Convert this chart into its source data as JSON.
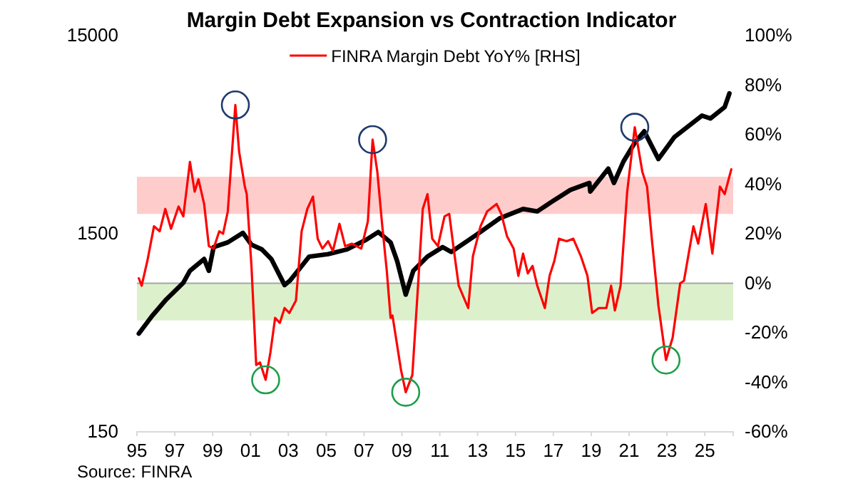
{
  "chart_data": {
    "type": "line",
    "title": "Margin Debt Expansion vs Contraction Indicator",
    "annotations": [
      "Source: FINRA"
    ],
    "xlim": [
      1995,
      2026.5
    ],
    "xticks": [
      {
        "value": 1995,
        "label": "95"
      },
      {
        "value": 1997,
        "label": "97"
      },
      {
        "value": 1999,
        "label": "99"
      },
      {
        "value": 2001,
        "label": "01"
      },
      {
        "value": 2003,
        "label": "03"
      },
      {
        "value": 2005,
        "label": "05"
      },
      {
        "value": 2007,
        "label": "07"
      },
      {
        "value": 2009,
        "label": "09"
      },
      {
        "value": 2011,
        "label": "11"
      },
      {
        "value": 2013,
        "label": "13"
      },
      {
        "value": 2015,
        "label": "15"
      },
      {
        "value": 2017,
        "label": "17"
      },
      {
        "value": 2019,
        "label": "19"
      },
      {
        "value": 2021,
        "label": "21"
      },
      {
        "value": 2023,
        "label": "23"
      },
      {
        "value": 2025,
        "label": "25"
      }
    ],
    "ylim": [
      150,
      15000
    ],
    "yticks": [
      150,
      1500,
      15000
    ],
    "log": true,
    "y2lim": [
      -60,
      100
    ],
    "y2ticks": [
      {
        "value": -60,
        "label": "-60%"
      },
      {
        "value": -40,
        "label": "-40%"
      },
      {
        "value": -20,
        "label": "-20%"
      },
      {
        "value": 0,
        "label": "0%"
      },
      {
        "value": 20,
        "label": "20%"
      },
      {
        "value": 40,
        "label": "40%"
      },
      {
        "value": 60,
        "label": "60%"
      },
      {
        "value": 80,
        "label": "80%"
      },
      {
        "value": 100,
        "label": "100%"
      }
    ],
    "grid": false,
    "legend": "top",
    "marker": "none",
    "line_style": "solid",
    "bands": [
      {
        "axis": "y2",
        "from": 28,
        "to": 43,
        "color": "#ffcccc"
      },
      {
        "axis": "y2",
        "from": -15,
        "to": 0,
        "color": "#ddf0cc"
      }
    ],
    "ref_lines": [
      {
        "axis": "y2",
        "value": 0,
        "color": "#a6a6a6"
      }
    ],
    "series": [
      {
        "color": "#000000",
        "x": [
          1995.1,
          1995.8,
          1996.55,
          1997.45,
          1997.8,
          1998.55,
          1998.8,
          1999.05,
          1999.8,
          2000.6,
          2001.05,
          2001.6,
          2002.1,
          2002.8,
          2003.1,
          2003.6,
          2004.1,
          2005.1,
          2006.1,
          2007.1,
          2007.75,
          2008.4,
          2008.75,
          2009.2,
          2009.6,
          2010.35,
          2011.15,
          2011.6,
          2012.9,
          2014.15,
          2015.4,
          2016.15,
          2016.9,
          2017.9,
          2018.9,
          2018.95,
          2019.9,
          2020.2,
          2020.7,
          2021.3,
          2021.8,
          2022.55,
          2023.4,
          2024.85,
          2025.3,
          2026.05,
          2026.3
        ],
        "values": [
          470,
          577,
          699,
          849,
          975,
          1118,
          975,
          1284,
          1357,
          1515,
          1320,
          1250,
          1118,
          826,
          873,
          1002,
          1150,
          1183,
          1250,
          1397,
          1530,
          1357,
          1089,
          739,
          975,
          1150,
          1284,
          1214,
          1474,
          1791,
          2000,
          1946,
          2170,
          2495,
          2707,
          2450,
          3195,
          2707,
          3470,
          4317,
          4934,
          3574,
          4620,
          5920,
          5730,
          6540,
          7660
        ]
      },
      {
        "name": "FINRA Margin Debt YoY% [RHS]",
        "color": "#ff0000",
        "axis": "y2",
        "x": [
          1995.1,
          1995.25,
          1995.55,
          1995.9,
          1996.2,
          1996.5,
          1996.8,
          1997.2,
          1997.45,
          1997.8,
          1998.05,
          1998.25,
          1998.55,
          1998.8,
          1999.05,
          1999.35,
          1999.55,
          1999.8,
          2000.2,
          2000.4,
          2000.7,
          2000.8,
          2001.05,
          2001.3,
          2001.5,
          2001.8,
          2002.05,
          2002.3,
          2002.55,
          2002.8,
          2003.05,
          2003.4,
          2003.7,
          2004.0,
          2004.3,
          2004.55,
          2004.8,
          2005.1,
          2005.35,
          2005.7,
          2006.0,
          2006.35,
          2006.6,
          2006.85,
          2007.2,
          2007.45,
          2007.7,
          2007.95,
          2008.2,
          2008.4,
          2008.5,
          2008.95,
          2009.2,
          2009.55,
          2009.85,
          2010.1,
          2010.35,
          2010.6,
          2010.9,
          2011.25,
          2011.5,
          2011.75,
          2012.0,
          2012.5,
          2012.75,
          2013.15,
          2013.5,
          2014.0,
          2014.25,
          2014.55,
          2014.9,
          2015.15,
          2015.4,
          2015.65,
          2015.9,
          2016.15,
          2016.55,
          2016.8,
          2017.05,
          2017.3,
          2017.7,
          2018.05,
          2018.45,
          2018.8,
          2019.05,
          2019.4,
          2019.8,
          2020.05,
          2020.25,
          2020.55,
          2020.9,
          2021.3,
          2021.7,
          2021.95,
          2022.2,
          2022.55,
          2022.95,
          2023.3,
          2023.7,
          2023.9,
          2024.4,
          2024.65,
          2025.05,
          2025.4,
          2025.8,
          2026.05,
          2026.4
        ],
        "values": [
          2,
          -1,
          9,
          23,
          21,
          30,
          22,
          31,
          27,
          49,
          37,
          42,
          32,
          15,
          14,
          21,
          20,
          29,
          72,
          53,
          39,
          36,
          7,
          -33,
          -32,
          -39,
          -28,
          -14,
          -16,
          -10,
          -12,
          -7,
          21,
          30,
          35,
          18,
          14,
          17,
          13,
          24,
          15,
          16,
          15,
          14,
          25,
          58,
          45,
          24,
          5,
          -14,
          -13,
          -35,
          -44,
          -37,
          -1,
          30,
          36,
          18,
          15,
          27,
          28,
          13,
          -1,
          -10,
          11,
          23,
          29,
          32,
          28,
          19,
          14,
          3,
          12,
          4,
          7,
          -1,
          -10,
          3,
          9,
          18,
          17,
          18,
          11,
          3,
          -12,
          -10,
          -10,
          -1,
          -11,
          -1,
          37,
          63,
          45,
          39,
          18,
          -9,
          -31,
          -22,
          0,
          1,
          23,
          16,
          32,
          12,
          39,
          36,
          46
        ]
      }
    ]
  }
}
